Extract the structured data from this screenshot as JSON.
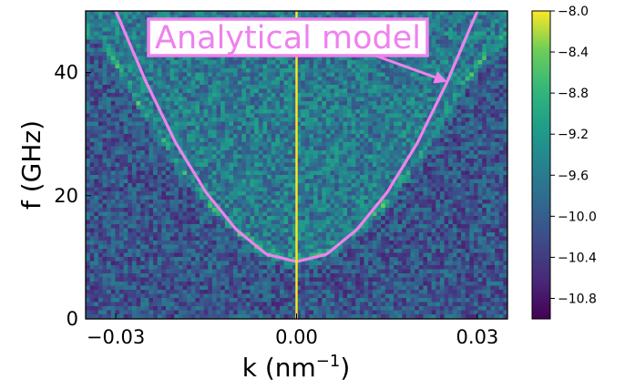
{
  "chart_data": {
    "type": "heatmap",
    "title": "",
    "xlabel": "k (nm",
    "xlabel_superscript": "−1",
    "xlabel_close": ")",
    "ylabel": "f (GHz)",
    "xlim": [
      -0.035,
      0.035
    ],
    "ylim": [
      0,
      50
    ],
    "x_ticks": [
      {
        "value": -0.03,
        "label": "−0.03"
      },
      {
        "value": 0.0,
        "label": "0.00"
      },
      {
        "value": 0.03,
        "label": "0.03"
      }
    ],
    "y_ticks": [
      {
        "value": 0,
        "label": "0"
      },
      {
        "value": 20,
        "label": "20"
      },
      {
        "value": 40,
        "label": "40"
      }
    ],
    "colormap": "viridis",
    "colorbar": {
      "range": [
        -11.0,
        -8.0
      ],
      "ticks": [
        {
          "value": -8.0,
          "label": "−8.0"
        },
        {
          "value": -8.4,
          "label": "−8.4"
        },
        {
          "value": -8.8,
          "label": "−8.8"
        },
        {
          "value": -9.2,
          "label": "−9.2"
        },
        {
          "value": -9.6,
          "label": "−9.6"
        },
        {
          "value": -10.0,
          "label": "−10.0"
        },
        {
          "value": -10.4,
          "label": "−10.4"
        },
        {
          "value": -10.8,
          "label": "−10.8"
        }
      ]
    },
    "annotation": {
      "text": "Analytical model",
      "color": "#ee82ee",
      "arrow_target": {
        "k": 0.025,
        "f": 38.5
      }
    },
    "analytical_model": {
      "color": "#ee82ee",
      "k": [
        -0.035,
        -0.03,
        -0.025,
        -0.02,
        -0.015,
        -0.01,
        -0.005,
        0.0,
        0.005,
        0.01,
        0.015,
        0.02,
        0.025,
        0.03,
        0.035
      ],
      "f": [
        60.0,
        50.0,
        38.5,
        28.5,
        20.5,
        14.5,
        10.5,
        9.3,
        10.5,
        14.5,
        20.5,
        28.5,
        38.5,
        50.0,
        60.0
      ]
    },
    "measured_branch": {
      "k": [
        -0.033,
        -0.03,
        -0.025,
        -0.02,
        -0.015,
        -0.01,
        -0.005,
        0.0,
        0.005,
        0.01,
        0.015,
        0.02,
        0.025,
        0.03,
        0.035
      ],
      "f": [
        46.0,
        41.0,
        33.0,
        25.5,
        19.0,
        14.0,
        10.5,
        9.3,
        10.5,
        14.0,
        19.0,
        25.5,
        33.0,
        41.0,
        46.0
      ]
    },
    "k0_line": {
      "k": 0.0,
      "color": "#fde725"
    }
  }
}
